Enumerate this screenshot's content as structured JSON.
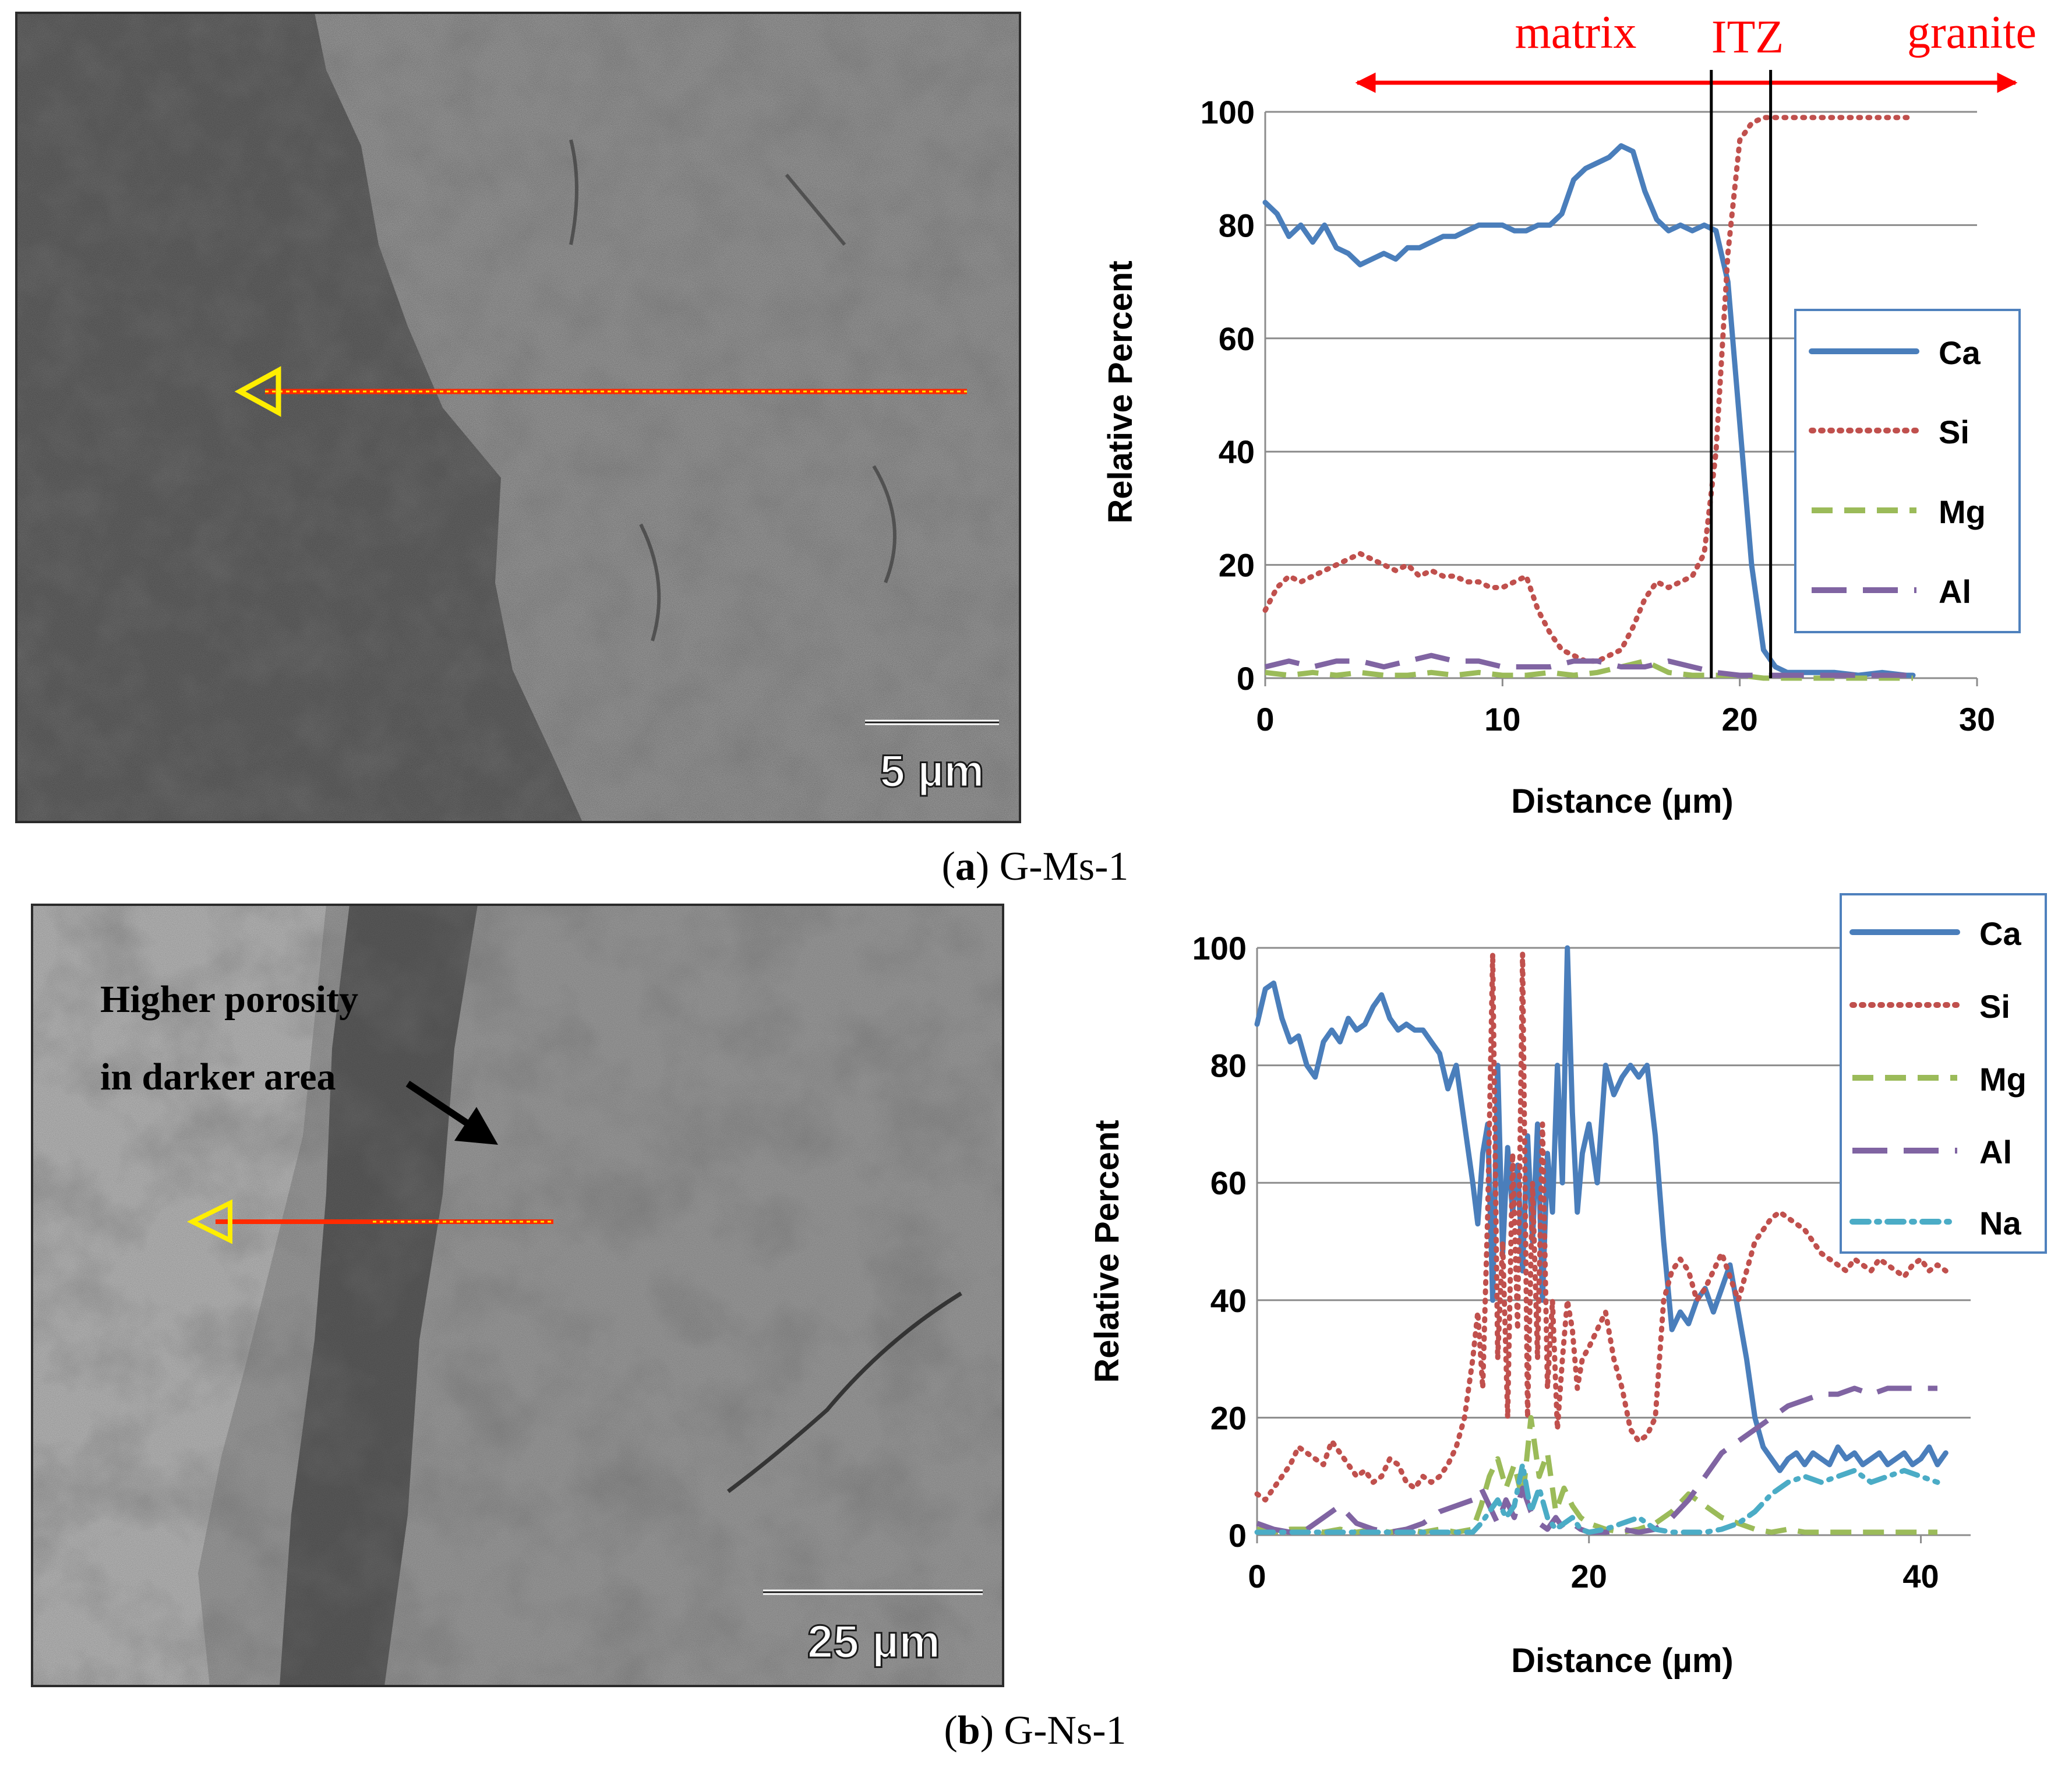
{
  "panels": [
    {
      "caption_letter": "a",
      "caption_text": "G-Ms-1",
      "sem": {
        "scale_label": "5 µm",
        "annotation_lines": []
      },
      "zones": {
        "left": "matrix",
        "middle": "ITZ",
        "right": "granite"
      }
    },
    {
      "caption_letter": "b",
      "caption_text": "G-Ns-1",
      "sem": {
        "scale_label": "25 µm",
        "annotation_lines": [
          "Higher porosity",
          "in darker area"
        ]
      }
    }
  ],
  "colors": {
    "Ca": "#4a7ebb",
    "Si": "#c0504d",
    "Mg": "#9bbb59",
    "Al": "#8064a2",
    "Na": "#4bacc6",
    "zone_arrow": "#ff0000",
    "scan_line": "#ff2a00",
    "scan_arrow": "#ffee00"
  },
  "chart_data": [
    {
      "type": "line",
      "xlabel": "Distance (µm)",
      "ylabel": "Relative Percent",
      "xlim": [
        0,
        30
      ],
      "ylim": [
        0,
        100
      ],
      "xticks": [
        0,
        10,
        20,
        30
      ],
      "yticks": [
        0,
        20,
        40,
        60,
        80,
        100
      ],
      "grid": true,
      "legend": "right",
      "zone_boundaries": [
        18.8,
        21.3
      ],
      "series": [
        {
          "name": "Ca",
          "style": "solid",
          "x": [
            0,
            0.5,
            1,
            1.5,
            2,
            2.5,
            3,
            3.5,
            4,
            4.5,
            5,
            5.5,
            6,
            6.5,
            7,
            7.5,
            8,
            8.5,
            9,
            9.5,
            10,
            10.5,
            11,
            11.5,
            12,
            12.5,
            13,
            13.5,
            14,
            14.5,
            15,
            15.5,
            16,
            16.5,
            17,
            17.5,
            18,
            18.5,
            19,
            19.5,
            20,
            20.5,
            21,
            21.5,
            22,
            22.5,
            23,
            24,
            25,
            26,
            27,
            27.3
          ],
          "y": [
            84,
            82,
            78,
            80,
            77,
            80,
            76,
            75,
            73,
            74,
            75,
            74,
            76,
            76,
            77,
            78,
            78,
            79,
            80,
            80,
            80,
            79,
            79,
            80,
            80,
            82,
            88,
            90,
            91,
            92,
            94,
            93,
            86,
            81,
            79,
            80,
            79,
            80,
            79,
            70,
            45,
            20,
            5,
            2,
            1,
            1,
            1,
            1,
            0.5,
            1,
            0.5,
            0.5
          ]
        },
        {
          "name": "Si",
          "style": "dotted",
          "x": [
            0,
            0.5,
            1,
            1.5,
            2,
            2.5,
            3,
            3.5,
            4,
            4.5,
            5,
            5.5,
            6,
            6.5,
            7,
            7.5,
            8,
            8.5,
            9,
            9.5,
            10,
            10.5,
            11,
            11.5,
            12,
            12.5,
            13,
            13.5,
            14,
            14.5,
            15,
            15.5,
            16,
            16.5,
            17,
            17.5,
            18,
            18.5,
            19,
            19.5,
            20,
            20.5,
            21,
            21.5,
            22,
            22.5,
            23,
            24,
            25,
            26,
            27,
            27.3
          ],
          "y": [
            12,
            16,
            18,
            17,
            18,
            19,
            20,
            21,
            22,
            21,
            20,
            19,
            20,
            18,
            19,
            18,
            18,
            17,
            17,
            16,
            16,
            17,
            18,
            12,
            8,
            5,
            4,
            3,
            3,
            4,
            5,
            9,
            14,
            17,
            16,
            17,
            18,
            22,
            40,
            75,
            95,
            98,
            99,
            99,
            99,
            99,
            99,
            99,
            99,
            99,
            99,
            99
          ]
        },
        {
          "name": "Mg",
          "style": "dashed",
          "x": [
            0,
            1,
            2,
            3,
            4,
            5,
            6,
            7,
            8,
            9,
            10,
            11,
            12,
            13,
            14,
            15,
            16,
            16.5,
            17,
            18,
            19,
            20,
            21,
            22,
            24,
            26,
            27.3
          ],
          "y": [
            1,
            0.5,
            1,
            0.5,
            1,
            0.5,
            0.5,
            1,
            0.5,
            1,
            0.5,
            0.5,
            1,
            0.5,
            1,
            2,
            3,
            2,
            1,
            0.5,
            0.5,
            0.5,
            0,
            0,
            0,
            0,
            0
          ]
        },
        {
          "name": "Al",
          "style": "longdash",
          "x": [
            0,
            1,
            2,
            3,
            4,
            5,
            6,
            7,
            8,
            9,
            10,
            11,
            12,
            13,
            14,
            15,
            16,
            17,
            18,
            19,
            20,
            21,
            22,
            24,
            26,
            27.3
          ],
          "y": [
            2,
            3,
            2,
            3,
            3,
            2,
            3,
            4,
            3,
            3,
            2,
            2,
            2,
            3,
            3,
            2,
            2,
            3,
            2,
            1,
            0.5,
            0.5,
            0.5,
            0.5,
            0.5,
            0.5
          ]
        }
      ]
    },
    {
      "type": "line",
      "xlabel": "Distance (µm)",
      "ylabel": "Relative Percent",
      "xlim": [
        0,
        43
      ],
      "ylim": [
        0,
        100
      ],
      "xticks": [
        0,
        20,
        40
      ],
      "yticks": [
        0,
        20,
        40,
        60,
        80,
        100
      ],
      "grid": true,
      "legend": "top-right",
      "series": [
        {
          "name": "Ca",
          "style": "solid",
          "x": [
            0,
            0.5,
            1,
            1.5,
            2,
            2.5,
            3,
            3.5,
            4,
            4.5,
            5,
            5.5,
            6,
            6.5,
            7,
            7.5,
            8,
            8.5,
            9,
            9.5,
            10,
            10.5,
            11,
            11.5,
            12,
            12.5,
            13,
            13.3,
            13.6,
            13.9,
            14.2,
            14.5,
            14.8,
            15.1,
            15.4,
            15.7,
            16,
            16.3,
            16.6,
            16.9,
            17.2,
            17.5,
            17.8,
            18.1,
            18.4,
            18.7,
            19,
            19.3,
            19.6,
            20,
            20.5,
            21,
            21.5,
            22,
            22.5,
            23,
            23.5,
            24,
            24.5,
            25,
            25.5,
            26,
            26.5,
            27,
            27.5,
            28,
            28.5,
            29,
            29.5,
            30,
            30.5,
            31,
            31.5,
            32,
            32.5,
            33,
            33.5,
            34,
            34.5,
            35,
            35.5,
            36,
            36.5,
            37,
            37.5,
            38,
            38.5,
            39,
            39.5,
            40,
            40.5,
            41,
            41.5
          ],
          "y": [
            87,
            93,
            94,
            88,
            84,
            85,
            80,
            78,
            84,
            86,
            84,
            88,
            86,
            87,
            90,
            92,
            88,
            86,
            87,
            86,
            86,
            84,
            82,
            76,
            80,
            70,
            60,
            53,
            65,
            70,
            40,
            80,
            48,
            66,
            55,
            63,
            45,
            68,
            50,
            70,
            40,
            65,
            55,
            80,
            60,
            100,
            72,
            55,
            65,
            70,
            60,
            80,
            75,
            78,
            80,
            78,
            80,
            68,
            50,
            35,
            38,
            36,
            40,
            42,
            38,
            42,
            46,
            38,
            30,
            20,
            15,
            13,
            11,
            13,
            14,
            12,
            14,
            13,
            12,
            15,
            13,
            14,
            12,
            13,
            14,
            12,
            13,
            14,
            12,
            13,
            15,
            12,
            14
          ]
        },
        {
          "name": "Si",
          "style": "dotted",
          "x": [
            0,
            0.5,
            1,
            1.5,
            2,
            2.5,
            3,
            3.5,
            4,
            4.5,
            5,
            5.5,
            6,
            6.5,
            7,
            7.5,
            8,
            8.5,
            9,
            9.5,
            10,
            10.5,
            11,
            11.5,
            12,
            12.5,
            13,
            13.3,
            13.6,
            13.9,
            14.2,
            14.5,
            14.8,
            15.1,
            15.4,
            15.7,
            16,
            16.3,
            16.6,
            16.9,
            17.2,
            17.5,
            17.8,
            18.1,
            18.4,
            18.7,
            19,
            19.3,
            19.6,
            20,
            20.5,
            21,
            21.5,
            22,
            22.5,
            23,
            23.5,
            24,
            24.5,
            25,
            25.5,
            26,
            26.5,
            27,
            27.5,
            28,
            28.5,
            29,
            29.5,
            30,
            30.5,
            31,
            31.5,
            32,
            32.5,
            33,
            33.5,
            34,
            34.5,
            35,
            35.5,
            36,
            36.5,
            37,
            37.5,
            38,
            38.5,
            39,
            39.5,
            40,
            40.5,
            41,
            41.5
          ],
          "y": [
            7,
            6,
            8,
            10,
            12,
            15,
            14,
            13,
            12,
            16,
            14,
            12,
            10,
            11,
            9,
            10,
            13,
            12,
            9,
            8,
            10,
            9,
            10,
            12,
            15,
            20,
            30,
            38,
            25,
            55,
            99,
            30,
            50,
            20,
            65,
            35,
            99,
            20,
            60,
            30,
            70,
            25,
            40,
            18,
            30,
            40,
            35,
            25,
            30,
            32,
            35,
            38,
            30,
            25,
            18,
            16,
            17,
            20,
            40,
            45,
            47,
            45,
            40,
            42,
            45,
            48,
            44,
            40,
            45,
            50,
            52,
            54,
            55,
            54,
            53,
            52,
            50,
            48,
            47,
            46,
            45,
            47,
            46,
            45,
            47,
            46,
            45,
            44,
            46,
            47,
            45,
            46,
            45
          ]
        },
        {
          "name": "Mg",
          "style": "dashed",
          "x": [
            0,
            1,
            2,
            3,
            4,
            5,
            6,
            7,
            8,
            9,
            10,
            11,
            12,
            13,
            13.5,
            14,
            14.5,
            15,
            15.5,
            16,
            16.5,
            17,
            17.5,
            18,
            18.5,
            19,
            19.5,
            20,
            21,
            22,
            23,
            24,
            25,
            26,
            27,
            28,
            29,
            30,
            31,
            32,
            33,
            34,
            35,
            36,
            37,
            38,
            39,
            40,
            41
          ],
          "y": [
            1,
            0.5,
            1,
            1,
            0.5,
            1,
            0.5,
            1,
            0.5,
            1,
            0.5,
            1,
            0.5,
            1,
            5,
            10,
            13,
            8,
            12,
            6,
            20,
            10,
            14,
            4,
            8,
            5,
            3,
            2,
            1,
            0.5,
            1,
            2,
            4,
            7,
            5,
            3,
            2,
            1,
            0.5,
            1,
            0.5,
            0.5,
            0.5,
            0.5,
            0.5,
            0.5,
            0.5,
            0.5,
            0.5
          ]
        },
        {
          "name": "Al",
          "style": "longdash",
          "x": [
            0,
            1,
            2,
            3,
            4,
            5,
            6,
            7,
            8,
            9,
            10,
            11,
            12,
            13,
            13.5,
            14,
            14.5,
            15,
            15.5,
            16,
            16.5,
            17,
            17.5,
            18,
            18.5,
            19,
            19.5,
            20,
            21,
            22,
            23,
            24,
            25,
            26,
            27,
            28,
            29,
            30,
            31,
            32,
            33,
            34,
            35,
            36,
            37,
            38,
            39,
            40,
            41
          ],
          "y": [
            2,
            1,
            0.5,
            1,
            3,
            5,
            2,
            1,
            0.5,
            1,
            2,
            4,
            5,
            6,
            8,
            5,
            2,
            6,
            3,
            8,
            4,
            2,
            1,
            3,
            1,
            2,
            1,
            0.5,
            0.5,
            1,
            0.5,
            1,
            3,
            6,
            10,
            14,
            16,
            18,
            20,
            22,
            23,
            24,
            24,
            25,
            24,
            25,
            25,
            25,
            25
          ]
        },
        {
          "name": "Na",
          "style": "dashdot",
          "x": [
            0,
            1,
            2,
            3,
            4,
            5,
            6,
            7,
            8,
            9,
            10,
            11,
            12,
            13,
            13.5,
            14,
            14.5,
            15,
            15.5,
            16,
            16.5,
            17,
            17.5,
            18,
            18.5,
            19,
            19.5,
            20,
            21,
            22,
            23,
            24,
            25,
            26,
            27,
            28,
            29,
            30,
            31,
            32,
            33,
            34,
            35,
            36,
            37,
            38,
            39,
            40,
            41
          ],
          "y": [
            0.5,
            0.5,
            0.5,
            0.5,
            0.5,
            0.5,
            0.5,
            0.5,
            0.5,
            0.5,
            0.5,
            0.5,
            0.5,
            0.5,
            2,
            4,
            6,
            3,
            5,
            12,
            4,
            8,
            3,
            1,
            2,
            3,
            1,
            0.5,
            1,
            2,
            3,
            1,
            0.5,
            0.5,
            0.5,
            1,
            2,
            4,
            7,
            9,
            10,
            9,
            10,
            11,
            9,
            10,
            11,
            10,
            9
          ]
        }
      ]
    }
  ]
}
